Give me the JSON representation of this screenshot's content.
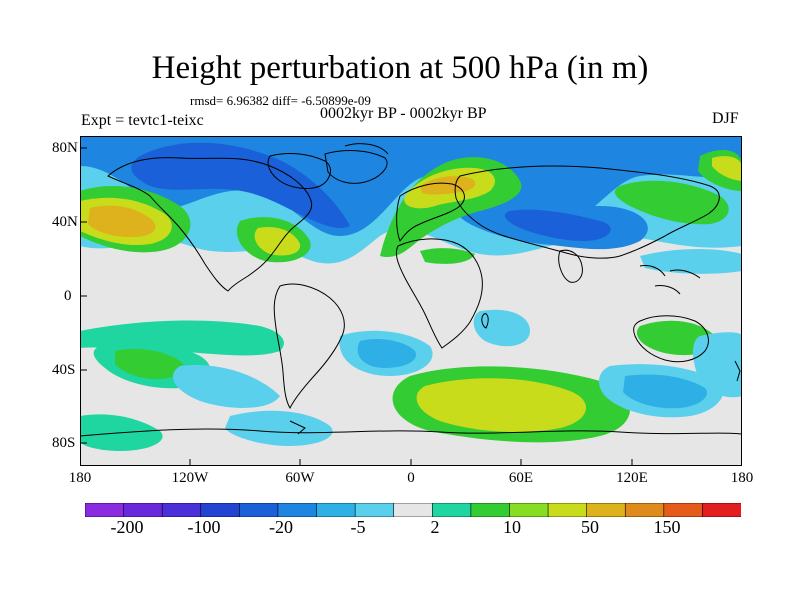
{
  "title": "Height perturbation at 500 hPa (in m)",
  "stats": "rmsd= 6.96382 diff= -6.50899e-09",
  "experiment": "Expt = tevtc1-teixc",
  "period": "0002kyr BP - 0002kyr BP",
  "season": "DJF",
  "lat_labels": [
    "80N",
    "40N",
    "0",
    "40S",
    "80S"
  ],
  "lon_labels": [
    "180",
    "120W",
    "60W",
    "0",
    "60E",
    "120E",
    "180"
  ],
  "colorbar": {
    "colors": [
      "#8a2be2",
      "#6a28dc",
      "#4b2fd8",
      "#2244d2",
      "#1a60d8",
      "#1e86e0",
      "#2eb0e6",
      "#5ad0ec",
      "#e6e6e6",
      "#1fd6a0",
      "#33cc33",
      "#88dd22",
      "#c8dc1c",
      "#ddb21c",
      "#e08a1c",
      "#e65a1c",
      "#e21e1e"
    ],
    "labels": [
      "-200",
      "-100",
      "-20",
      "-5",
      "2",
      "10",
      "50",
      "150"
    ]
  },
  "legend_map": {
    "ocean_bg": "#e6e6e6",
    "coast_color": "#000000"
  }
}
